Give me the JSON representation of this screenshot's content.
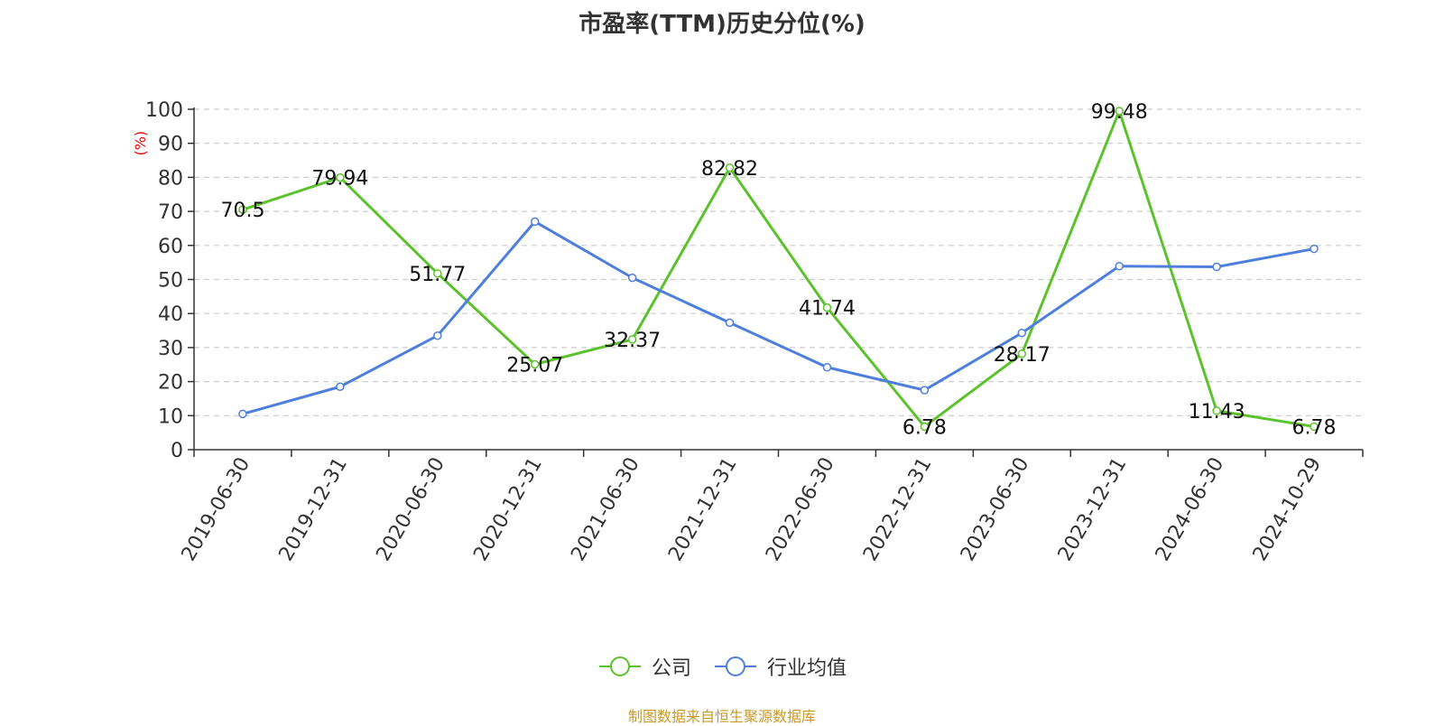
{
  "chart_data": {
    "type": "line",
    "title": "市盈率(TTM)历史分位(%)",
    "ylabel": "(%)",
    "ylim": [
      0,
      100
    ],
    "yticks": [
      0,
      10,
      20,
      30,
      40,
      50,
      60,
      70,
      80,
      90,
      100
    ],
    "grid": true,
    "legend_position": "bottom",
    "categories": [
      "2019-06-30",
      "2019-12-31",
      "2020-06-30",
      "2020-12-31",
      "2021-06-30",
      "2021-12-31",
      "2022-06-30",
      "2022-12-31",
      "2023-06-30",
      "2023-12-31",
      "2024-06-30",
      "2024-10-29"
    ],
    "series": [
      {
        "name": "公司",
        "color": "#5cc22c",
        "values": [
          70.5,
          79.94,
          51.77,
          25.07,
          32.37,
          82.82,
          41.74,
          6.78,
          28.17,
          99.48,
          11.43,
          6.78
        ],
        "labels": [
          "70.5",
          "79.94",
          "51.77",
          "25.07",
          "32.37",
          "82.82",
          "41.74",
          "6.78",
          "28.17",
          "99.48",
          "11.43",
          "6.78"
        ]
      },
      {
        "name": "行业均值",
        "color": "#4e7fdc",
        "values": [
          10.5,
          18.5,
          33.5,
          67.0,
          50.5,
          37.3,
          24.2,
          17.5,
          34.3,
          53.9,
          53.7,
          59.0
        ]
      }
    ]
  },
  "source": "制图数据来自恒生聚源数据库"
}
